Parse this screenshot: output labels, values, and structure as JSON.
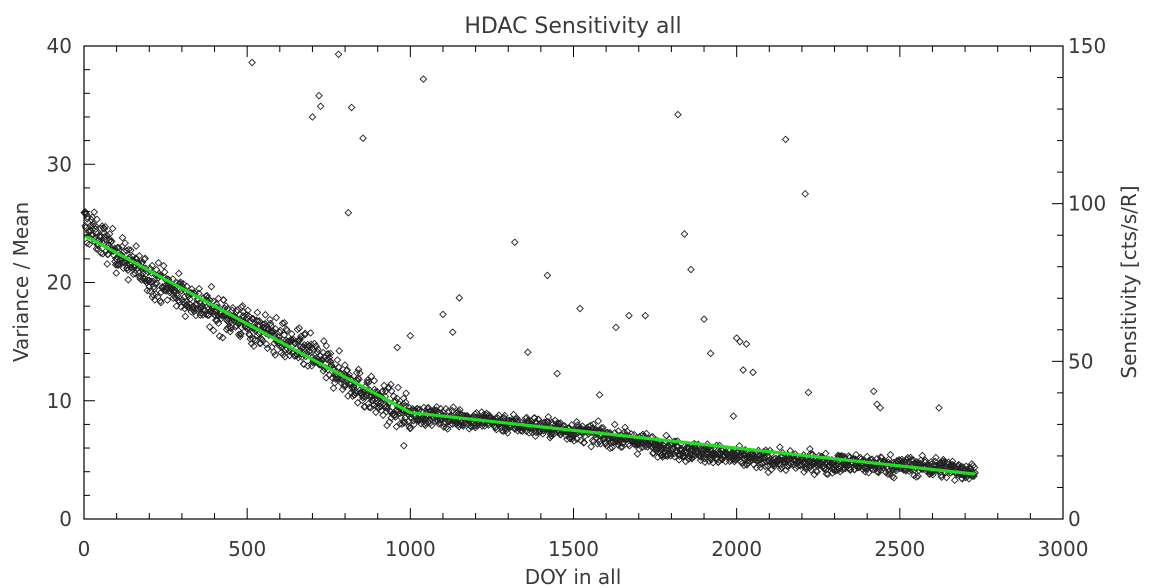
{
  "chart_data": {
    "type": "scatter",
    "title": "HDAC Sensitivity all",
    "xlabel": "DOY in all",
    "ylabel": "Variance / Mean",
    "y2label": "Sensitivity [cts/s/R]",
    "xlim": [
      0,
      3000
    ],
    "ylim": [
      0,
      40
    ],
    "y2lim": [
      0,
      150
    ],
    "x_ticks": [
      "0",
      "500",
      "1000",
      "1500",
      "2000",
      "2500",
      "3000"
    ],
    "y_ticks": [
      "0",
      "10",
      "20",
      "30",
      "40"
    ],
    "y2_ticks": [
      "0",
      "50",
      "100",
      "150"
    ],
    "grid": false,
    "fit_color": "#22dd22",
    "marker_color": "#222222",
    "fit_line": {
      "x": [
        0,
        1000,
        2730
      ],
      "y": [
        24.0,
        9.0,
        3.8
      ]
    },
    "scatter_band": {
      "x": [
        0,
        20,
        100,
        200,
        300,
        400,
        500,
        600,
        700,
        800,
        900,
        1000,
        1200,
        1400,
        1600,
        1800,
        2000,
        2200,
        2400,
        2600,
        2730
      ],
      "y": [
        25.0,
        24.5,
        22.5,
        20.5,
        19.0,
        17.5,
        16.5,
        15.2,
        13.8,
        12.0,
        10.0,
        8.8,
        8.4,
        7.8,
        7.0,
        6.0,
        5.2,
        4.8,
        4.6,
        4.4,
        4.0
      ]
    },
    "outliers": {
      "x": [
        515,
        700,
        720,
        725,
        780,
        810,
        820,
        855,
        1000,
        1040,
        1100,
        1130,
        1150,
        1320,
        1360,
        1420,
        1450,
        1520,
        1580,
        1630,
        1670,
        1720,
        1820,
        1840,
        1860,
        1900,
        1920,
        1990,
        2000,
        2010,
        2020,
        2030,
        2050,
        2150,
        2210,
        2220,
        2420,
        2430,
        2440,
        2620,
        960,
        980
      ],
      "y": [
        38.6,
        34.0,
        35.8,
        34.9,
        39.3,
        25.9,
        34.8,
        32.2,
        15.5,
        37.2,
        17.3,
        15.8,
        18.7,
        23.4,
        14.1,
        20.6,
        12.3,
        17.8,
        10.5,
        16.2,
        17.2,
        17.2,
        34.2,
        24.1,
        21.1,
        16.9,
        14.0,
        8.7,
        15.3,
        15.0,
        12.6,
        14.8,
        12.4,
        32.1,
        27.5,
        10.7,
        10.8,
        9.7,
        9.4,
        9.4,
        14.5,
        6.2
      ]
    }
  }
}
